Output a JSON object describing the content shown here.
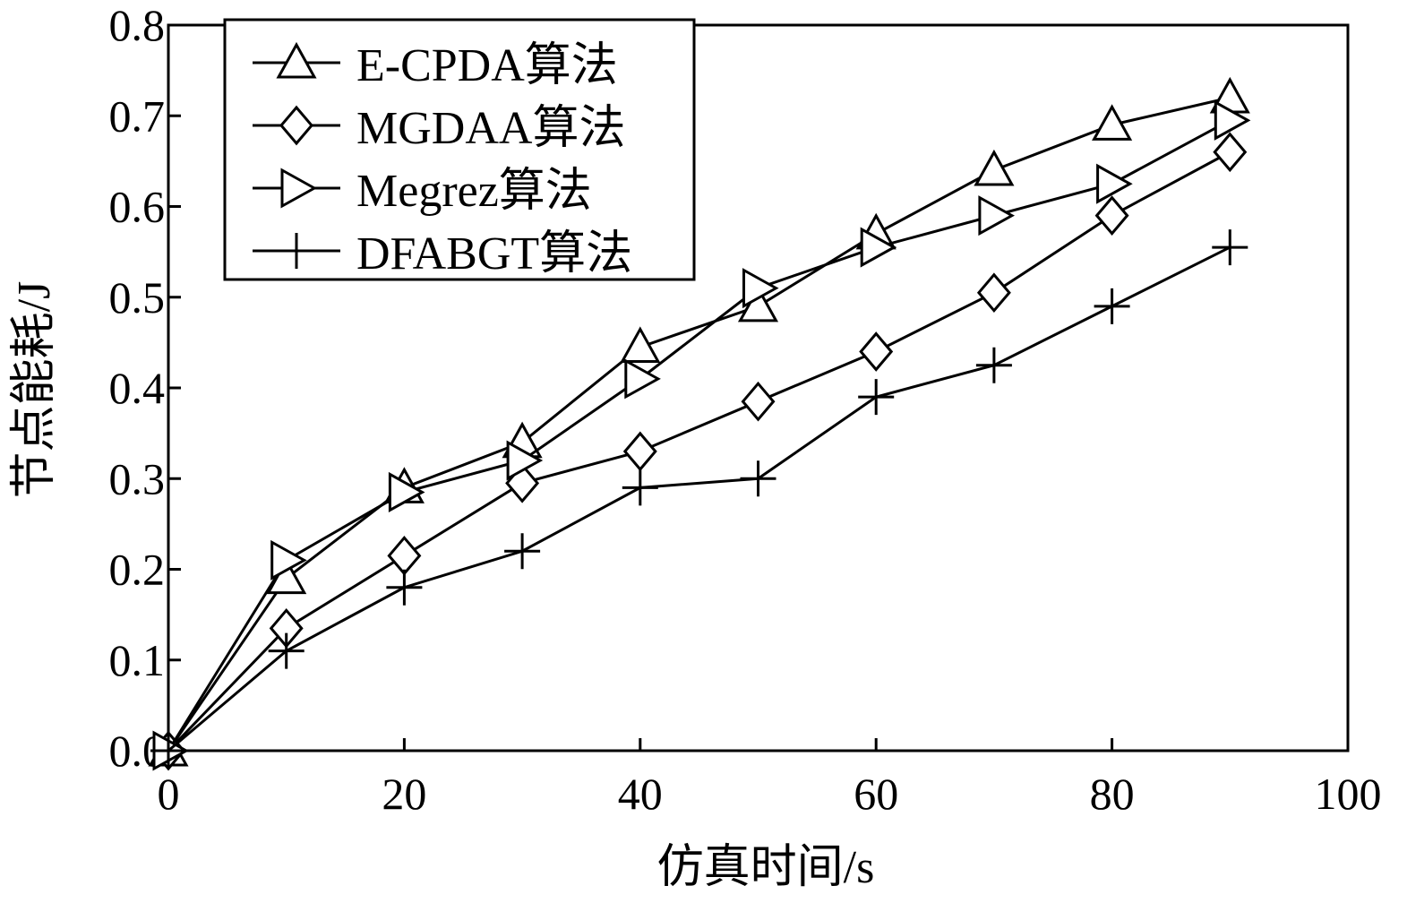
{
  "chart_data": {
    "type": "line",
    "title": "",
    "xlabel": "仿真时间/s",
    "ylabel": "节点能耗/J",
    "xlim": [
      0,
      100
    ],
    "ylim": [
      0,
      0.8
    ],
    "xticks": [
      "0",
      "20",
      "40",
      "60",
      "80",
      "100"
    ],
    "yticks": [
      "0.0",
      "0.1",
      "0.2",
      "0.3",
      "0.4",
      "0.5",
      "0.6",
      "0.7",
      "0.8"
    ],
    "grid": false,
    "legend_position": "top-left",
    "x": [
      0,
      10,
      20,
      30,
      40,
      50,
      60,
      70,
      80,
      90
    ],
    "series": [
      {
        "name": "E-CPDA算法",
        "marker": "triangle-up",
        "values": [
          0.0,
          0.19,
          0.29,
          0.34,
          0.445,
          0.49,
          0.57,
          0.64,
          0.69,
          0.72
        ]
      },
      {
        "name": "MGDAA算法",
        "marker": "diamond",
        "values": [
          0.0,
          0.135,
          0.215,
          0.295,
          0.33,
          0.385,
          0.44,
          0.505,
          0.59,
          0.66
        ]
      },
      {
        "name": "Megrez算法",
        "marker": "triangle-right",
        "values": [
          0.0,
          0.21,
          0.285,
          0.32,
          0.41,
          0.51,
          0.555,
          0.59,
          0.625,
          0.695
        ]
      },
      {
        "name": "DFABGT算法",
        "marker": "plus",
        "values": [
          0.0,
          0.11,
          0.18,
          0.22,
          0.29,
          0.3,
          0.39,
          0.425,
          0.49,
          0.555
        ]
      }
    ]
  }
}
